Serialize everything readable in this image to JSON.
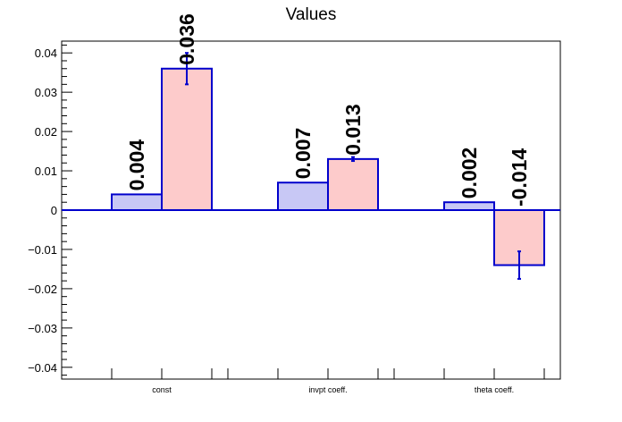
{
  "chart_data": {
    "type": "bar",
    "title": "Values",
    "categories": [
      "const",
      "invpt coeff.",
      "theta coeff."
    ],
    "series": [
      {
        "values": [
          0.004,
          0.007,
          0.002
        ],
        "errors": [
          0,
          0,
          0
        ],
        "labels": [
          "0.004",
          "0.007",
          "0.002"
        ],
        "fill": "#c8c8f5"
      },
      {
        "values": [
          0.036,
          0.013,
          -0.014
        ],
        "errors": [
          0.004,
          0.0005,
          0.0035
        ],
        "labels": [
          "0.036",
          "0.013",
          "-0.014"
        ],
        "fill": "#fdcbcb"
      }
    ],
    "ylim": [
      -0.043,
      0.043
    ],
    "yticks": [
      0.04,
      0.03,
      0.02,
      0.01,
      0,
      -0.01,
      -0.02,
      -0.03,
      -0.04
    ],
    "ytick_labels": [
      "0.04",
      "0.03",
      "0.02",
      "0.01",
      "0",
      "−0.01",
      "−0.02",
      "−0.03",
      "−0.04"
    ],
    "grid": false,
    "legend": "none",
    "colors": {
      "edge": "#0000cc",
      "zero_line": "#0000cc",
      "frame": "#000000"
    }
  }
}
